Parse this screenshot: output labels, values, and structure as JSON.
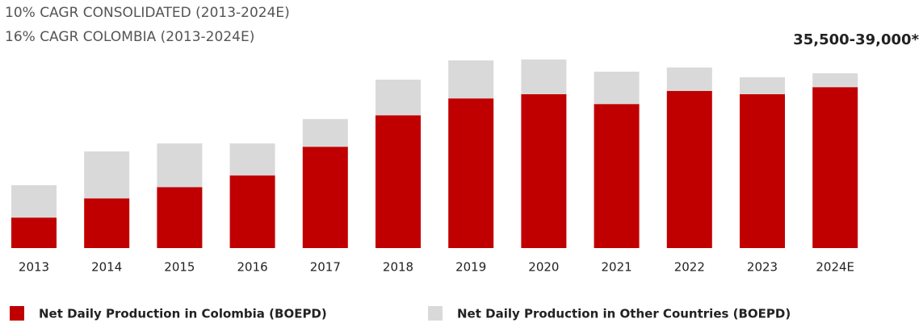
{
  "chart_data": {
    "type": "stacked_bar",
    "subtitle": [
      "10% CAGR CONSOLIDATED  (2013-2024E)",
      "16% CAGR COLOMBIA (2013-2024E)"
    ],
    "annotation": "35,500-39,000*",
    "categories": [
      "2013",
      "2014",
      "2015",
      "2016",
      "2017",
      "2018",
      "2019",
      "2020",
      "2021",
      "2022",
      "2023",
      "2024E"
    ],
    "series": [
      {
        "name": "Net Daily Production in Colombia (BOEPD)",
        "color": "#c00000",
        "values": [
          6500,
          10600,
          13000,
          15500,
          21600,
          28300,
          31900,
          32800,
          30700,
          33500,
          32800,
          34300
        ]
      },
      {
        "name": "Net Daily Production in Other Countries (BOEPD)",
        "color": "#d9d9d9",
        "values": [
          6900,
          10000,
          9300,
          6800,
          5900,
          7600,
          8100,
          7400,
          6900,
          5000,
          3600,
          2950
        ]
      }
    ],
    "ylim": [
      0,
      40000
    ]
  }
}
